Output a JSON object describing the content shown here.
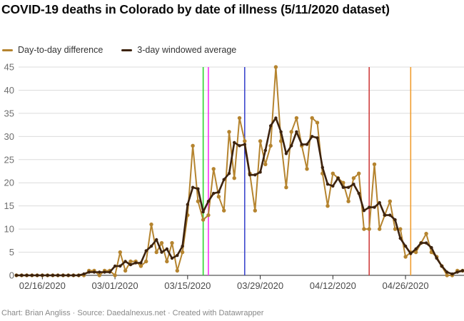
{
  "header": {
    "title": "COVID-19 deaths in Colorado by date of illness (5/11/2020 dataset)"
  },
  "legend": [
    {
      "label": "Day-to-day difference",
      "color": "#b5842f"
    },
    {
      "label": "3-day windowed average",
      "color": "#3d230e"
    }
  ],
  "footer": {
    "text": "Chart: Brian Angliss · Source: Daedalnexus.net · Created with Datawrapper"
  },
  "chart_data": {
    "type": "line",
    "title": "COVID-19 deaths in Colorado by date of illness (5/11/2020 dataset)",
    "xlabel": "",
    "ylabel": "",
    "ylim": [
      0,
      45
    ],
    "grid": true,
    "legend_position": "top",
    "y_ticks": [
      0,
      5,
      10,
      15,
      20,
      25,
      30,
      35,
      40,
      45
    ],
    "x_ticks": [
      {
        "date": "02/16",
        "label": "02/16/2020"
      },
      {
        "date": "03/01",
        "label": "03/01/2020"
      },
      {
        "date": "03/15",
        "label": "03/15/2020"
      },
      {
        "date": "03/29",
        "label": "03/29/2020"
      },
      {
        "date": "04/12",
        "label": "04/12/2020"
      },
      {
        "date": "04/26",
        "label": "04/26/2020"
      }
    ],
    "annotations": [
      {
        "date": "03/18",
        "color": "#2ed52e"
      },
      {
        "date": "03/19",
        "color": "#f531f5"
      },
      {
        "date": "03/26",
        "color": "#3c46cc"
      },
      {
        "date": "04/19",
        "color": "#cf4040"
      },
      {
        "date": "04/27",
        "color": "#f09d2e"
      }
    ],
    "x": [
      "02/11",
      "02/12",
      "02/13",
      "02/14",
      "02/15",
      "02/16",
      "02/17",
      "02/18",
      "02/19",
      "02/20",
      "02/21",
      "02/22",
      "02/23",
      "02/24",
      "02/25",
      "02/26",
      "02/27",
      "02/28",
      "02/29",
      "03/01",
      "03/02",
      "03/03",
      "03/04",
      "03/05",
      "03/06",
      "03/07",
      "03/08",
      "03/09",
      "03/10",
      "03/11",
      "03/12",
      "03/13",
      "03/14",
      "03/15",
      "03/16",
      "03/17",
      "03/18",
      "03/19",
      "03/20",
      "03/21",
      "03/22",
      "03/23",
      "03/24",
      "03/25",
      "03/26",
      "03/27",
      "03/28",
      "03/29",
      "03/30",
      "03/31",
      "04/01",
      "04/02",
      "04/03",
      "04/04",
      "04/05",
      "04/06",
      "04/07",
      "04/08",
      "04/09",
      "04/10",
      "04/11",
      "04/12",
      "04/13",
      "04/14",
      "04/15",
      "04/16",
      "04/17",
      "04/18",
      "04/19",
      "04/20",
      "04/21",
      "04/22",
      "04/23",
      "04/24",
      "04/25",
      "04/26",
      "04/27",
      "04/28",
      "04/29",
      "04/30",
      "05/01",
      "05/02",
      "05/03",
      "05/04",
      "05/05",
      "05/06",
      "05/07"
    ],
    "series": [
      {
        "name": "Day-to-day difference",
        "color": "#b5842f",
        "values": [
          0,
          0,
          0,
          0,
          0,
          0,
          0,
          0,
          0,
          0,
          0,
          0,
          0,
          0,
          1,
          1,
          0,
          1,
          1,
          0,
          5,
          1,
          3,
          3,
          2,
          3,
          11,
          5,
          7,
          3,
          7,
          1,
          5,
          13,
          28,
          16,
          12,
          13,
          23,
          17,
          14,
          31,
          21,
          34,
          29,
          22,
          14,
          29,
          24,
          28,
          45,
          29,
          19,
          31,
          34,
          28,
          23,
          34,
          33,
          22,
          15,
          22,
          21,
          20,
          16,
          21,
          22,
          10,
          10,
          24,
          10,
          13,
          16,
          10,
          10,
          4,
          5,
          5,
          7,
          9,
          5,
          4,
          2,
          0,
          0,
          1,
          1
        ]
      },
      {
        "name": "3-day windowed average",
        "color": "#3d230e",
        "values": [
          0,
          0,
          0,
          0,
          0,
          0,
          0,
          0,
          0,
          0,
          0,
          0,
          0,
          0.3,
          0.7,
          0.7,
          0.7,
          0.7,
          0.7,
          2,
          2,
          3,
          2.3,
          2.7,
          2.7,
          5.3,
          6.3,
          7.7,
          5,
          5.7,
          3.7,
          4.3,
          6.3,
          15.3,
          19,
          18.7,
          13.7,
          16,
          17.7,
          18,
          20.7,
          22,
          28.7,
          28,
          28.3,
          21.7,
          21.7,
          22.3,
          27,
          32.3,
          34,
          31,
          26.3,
          28,
          31,
          28.3,
          28.3,
          30,
          29.7,
          23.3,
          19.7,
          19.3,
          21,
          19,
          19,
          19.7,
          17.7,
          14,
          14.7,
          14.7,
          15.7,
          13,
          13,
          12,
          8,
          6.3,
          4.7,
          5.7,
          7,
          7,
          6,
          3.7,
          2,
          0.7,
          0.3,
          0.7,
          1
        ]
      }
    ]
  }
}
